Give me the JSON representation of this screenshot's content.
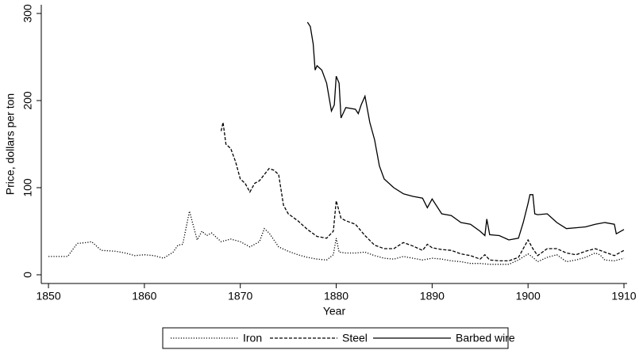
{
  "chart_data": {
    "type": "line",
    "x_label": "Year",
    "y_label": "Price, dollars per ton",
    "xlim": [
      1849.25,
      1910.33
    ],
    "ylim": [
      -10,
      310
    ],
    "xticks": [
      1850,
      1860,
      1870,
      1880,
      1890,
      1900,
      1910
    ],
    "yticks": [
      0,
      100,
      200,
      300
    ],
    "grid": false,
    "legend": "bottom",
    "series": [
      {
        "name": "Iron",
        "color": "#000000",
        "line_style": "dotted",
        "x": [
          1850,
          1852,
          1853,
          1854,
          1854.5,
          1855.5,
          1857,
          1858,
          1859,
          1860,
          1861,
          1862,
          1863,
          1863.5,
          1864,
          1864.7,
          1865.5,
          1866,
          1866.5,
          1867,
          1868,
          1869,
          1870,
          1871,
          1872,
          1872.5,
          1873,
          1874,
          1875,
          1876,
          1877,
          1878,
          1879,
          1879.7,
          1880,
          1880.3,
          1881,
          1882,
          1883,
          1884,
          1885,
          1886,
          1887,
          1888,
          1889,
          1890,
          1891,
          1892,
          1893,
          1894,
          1895,
          1896,
          1897,
          1898,
          1899,
          1900,
          1900.5,
          1901,
          1902,
          1903,
          1904,
          1905,
          1906,
          1907,
          1907.5,
          1908,
          1909,
          1910
        ],
        "values": [
          21,
          21,
          36,
          37,
          38,
          28,
          27,
          25,
          22,
          23,
          22,
          19,
          26,
          34,
          35,
          73,
          40,
          50,
          45,
          48,
          38,
          41,
          38,
          32,
          38,
          53,
          48,
          32,
          27,
          23,
          20,
          18,
          17,
          23,
          42,
          26,
          25,
          25,
          26,
          22,
          19,
          18,
          21,
          19,
          17,
          19,
          18,
          16,
          15,
          13,
          13,
          12,
          12,
          12,
          17,
          24,
          20,
          15,
          20,
          23,
          15,
          17,
          20,
          25,
          23,
          17,
          16,
          19
        ]
      },
      {
        "name": "Steel",
        "color": "#000000",
        "line_style": "dashed",
        "x": [
          1868,
          1868.2,
          1868.5,
          1869,
          1869.5,
          1870,
          1870.5,
          1871,
          1871.5,
          1872,
          1872.5,
          1873,
          1873.5,
          1874,
          1874.5,
          1875,
          1876,
          1877,
          1878,
          1879,
          1879.7,
          1880,
          1880.5,
          1881,
          1882,
          1883,
          1884,
          1885,
          1886,
          1887,
          1888,
          1889,
          1889.5,
          1890,
          1891,
          1892,
          1893,
          1894,
          1895,
          1895.5,
          1896,
          1897,
          1898,
          1899,
          1900,
          1900.5,
          1901,
          1902,
          1903,
          1904,
          1905,
          1906,
          1907,
          1908,
          1909,
          1910
        ],
        "values": [
          165,
          175,
          150,
          145,
          130,
          110,
          105,
          95,
          105,
          108,
          115,
          122,
          120,
          115,
          80,
          70,
          62,
          52,
          44,
          42,
          50,
          85,
          65,
          62,
          58,
          45,
          34,
          30,
          30,
          37,
          33,
          28,
          35,
          31,
          29,
          28,
          24,
          22,
          18,
          23,
          17,
          16,
          16,
          20,
          40,
          30,
          22,
          30,
          30,
          25,
          23,
          27,
          30,
          26,
          22,
          28
        ]
      },
      {
        "name": "Barbed wire",
        "color": "#000000",
        "line_style": "solid",
        "x": [
          1877,
          1877.3,
          1877.6,
          1877.8,
          1878,
          1878.5,
          1879,
          1879.5,
          1879.8,
          1880,
          1880.3,
          1880.5,
          1881,
          1882,
          1882.3,
          1882.6,
          1883,
          1883.5,
          1884,
          1884.5,
          1885,
          1886,
          1887,
          1888,
          1889,
          1889.5,
          1890,
          1891,
          1892,
          1893,
          1894,
          1895,
          1895.5,
          1895.7,
          1896,
          1897,
          1898,
          1899,
          1899.5,
          1900,
          1900.2,
          1900.5,
          1900.7,
          1901,
          1902,
          1903,
          1904,
          1905,
          1906,
          1907,
          1908,
          1909,
          1909.2,
          1910
        ],
        "values": [
          290,
          285,
          265,
          235,
          240,
          235,
          220,
          188,
          195,
          228,
          220,
          180,
          192,
          190,
          185,
          195,
          205,
          175,
          155,
          125,
          110,
          100,
          93,
          90,
          88,
          77,
          87,
          70,
          68,
          60,
          58,
          50,
          45,
          64,
          46,
          45,
          40,
          42,
          60,
          82,
          92,
          92,
          70,
          69,
          70,
          60,
          53,
          54,
          55,
          58,
          60,
          58,
          47,
          52
        ]
      }
    ]
  }
}
